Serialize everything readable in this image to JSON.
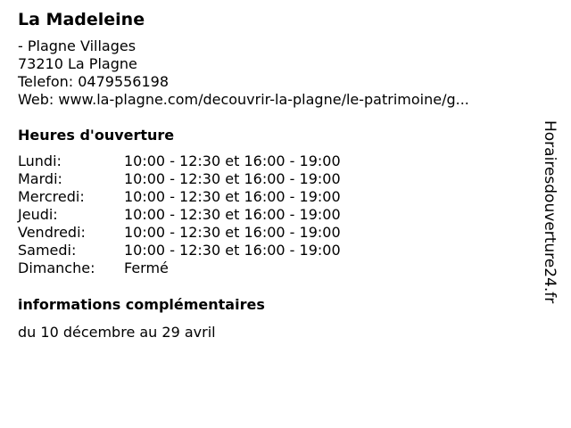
{
  "place": {
    "name": "La Madeleine",
    "address_line1": "- Plagne Villages",
    "address_line2": "73210 La Plagne",
    "phone": "Telefon: 0479556198",
    "web": "Web: www.la-plagne.com/decouvrir-la-plagne/le-patrimoine/g..."
  },
  "hours": {
    "heading": "Heures d'ouverture",
    "rows": [
      {
        "day": "Lundi:",
        "hours": "10:00 - 12:30 et 16:00 - 19:00"
      },
      {
        "day": "Mardi:",
        "hours": "10:00 - 12:30 et 16:00 - 19:00"
      },
      {
        "day": "Mercredi:",
        "hours": "10:00 - 12:30 et 16:00 - 19:00"
      },
      {
        "day": "Jeudi:",
        "hours": "10:00 - 12:30 et 16:00 - 19:00"
      },
      {
        "day": "Vendredi:",
        "hours": "10:00 - 12:30 et 16:00 - 19:00"
      },
      {
        "day": "Samedi:",
        "hours": "10:00 - 12:30 et 16:00 - 19:00"
      },
      {
        "day": "Dimanche:",
        "hours": "Fermé"
      }
    ]
  },
  "info": {
    "heading": "informations complémentaires",
    "text": "du 10 décembre au 29 avril"
  },
  "watermark": "Horairesdouverture24.fr"
}
